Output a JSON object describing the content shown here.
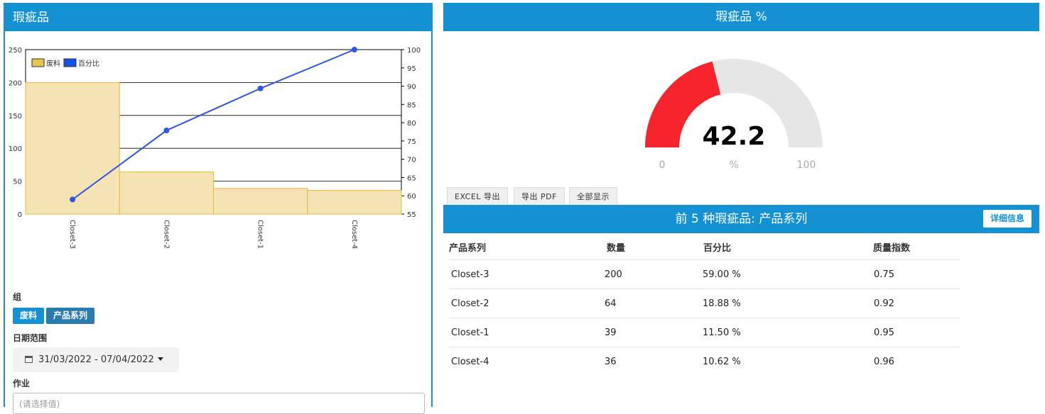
{
  "left_panel": {
    "title": "瑕疵品",
    "group_label": "组",
    "group_buttons": [
      {
        "label": "废料",
        "color": "#1391d3"
      },
      {
        "label": "产品系列",
        "color": "#2b7bb0"
      }
    ],
    "date_label": "日期范围",
    "date_range": "31/03/2022 - 07/04/2022",
    "job_label": "作业",
    "job_placeholder": "(请选择值)"
  },
  "chart_data": {
    "type": "bar",
    "categories": [
      "Closet-3",
      "Closet-2",
      "Closet-1",
      "Closet-4"
    ],
    "series": [
      {
        "name": "废料",
        "type": "bar",
        "axis": "left",
        "values": [
          200,
          64,
          39,
          36
        ],
        "color": "#f5e3b3",
        "stroke": "#e8b83a"
      },
      {
        "name": "百分比",
        "type": "line",
        "axis": "right",
        "values": [
          59.0,
          77.88,
          89.38,
          100.0
        ],
        "color": "#2f55e8"
      }
    ],
    "ylim_left": [
      0,
      250
    ],
    "yticks_left": [
      0,
      50,
      100,
      150,
      200,
      250
    ],
    "ylim_right": [
      55,
      100
    ],
    "yticks_right": [
      55,
      60,
      65,
      70,
      75,
      80,
      85,
      90,
      95,
      100
    ],
    "legend_position": "top-left",
    "grid": true,
    "legend_swatch_colors": [
      "#e8c450",
      "#1552e8"
    ]
  },
  "gauge": {
    "title": "瑕疵品 %",
    "value": 42.2,
    "value_text": "42.2",
    "min_label": "0",
    "max_label": "100",
    "unit": "%",
    "min": 0,
    "max": 100,
    "fill_color": "#f7242b",
    "track_color": "#e6e6e6"
  },
  "export_buttons": [
    "EXCEL 导出",
    "导出 PDF",
    "全部显示"
  ],
  "top5": {
    "title": "前 5 种瑕疵品: 产品系列",
    "detail_button": "详细信息",
    "columns": [
      "产品系列",
      "数量",
      "百分比",
      "质量指数"
    ],
    "rows": [
      [
        "Closet-3",
        "200",
        "59.00 %",
        "0.75"
      ],
      [
        "Closet-2",
        "64",
        "18.88 %",
        "0.92"
      ],
      [
        "Closet-1",
        "39",
        "11.50 %",
        "0.95"
      ],
      [
        "Closet-4",
        "36",
        "10.62 %",
        "0.96"
      ]
    ]
  }
}
